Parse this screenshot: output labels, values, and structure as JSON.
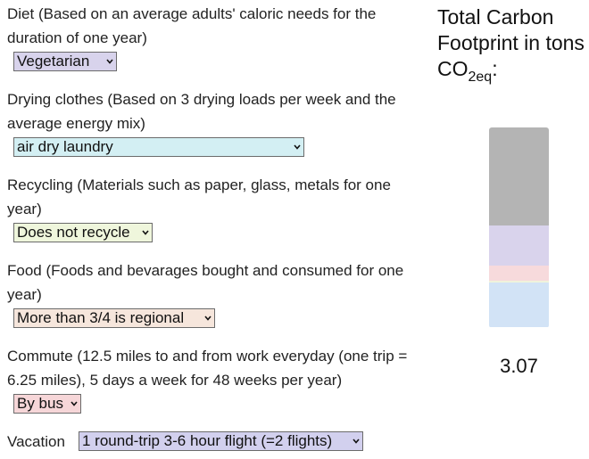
{
  "questions": {
    "diet": {
      "label": "Diet (Based on an average adults' caloric needs for the duration of one year)",
      "value": "Vegetarian"
    },
    "drying": {
      "label": "Drying clothes (Based on 3 drying loads per week and the average energy mix)",
      "value": "air dry laundry"
    },
    "recycling": {
      "label": "Recycling (Materials such as paper, glass, metals for one year)",
      "value": "Does not recycle"
    },
    "food": {
      "label": "Food (Foods and bevarages bought and consumed for one year)",
      "value": "More than 3/4 is regional"
    },
    "commute": {
      "label": "Commute (12.5 miles to and from work everyday (one trip = 6.25 miles), 5 days a week for 48 weeks per year)",
      "value": "By bus"
    },
    "vacation": {
      "label": "Vacation",
      "value": "1 round-trip 3-6 hour flight (=2 flights)"
    }
  },
  "total": {
    "title_main": "Total Carbon Footprint in tons CO",
    "title_sub": "2eq",
    "title_suffix": ":",
    "value": "3.07"
  },
  "colors": {
    "diet": "#d8d3ec",
    "drying": "#d3eff3",
    "recycling": "#eff6dc",
    "food": "#f6e6dc",
    "commute": "#f6d6d8",
    "vacation": "#d2d0ee",
    "bar_grey": "#b4b4b4",
    "bar_lavender": "#d9d3ec",
    "bar_pink": "#f7dadc",
    "bar_cream": "#f0f3dc",
    "bar_blue": "#d2e3f6"
  },
  "bar_segments_fraction": [
    {
      "name": "grey",
      "fraction": 0.49
    },
    {
      "name": "lavender",
      "fraction": 0.2
    },
    {
      "name": "pink",
      "fraction": 0.075
    },
    {
      "name": "cream",
      "fraction": 0.011
    },
    {
      "name": "blue",
      "fraction": 0.224
    }
  ]
}
